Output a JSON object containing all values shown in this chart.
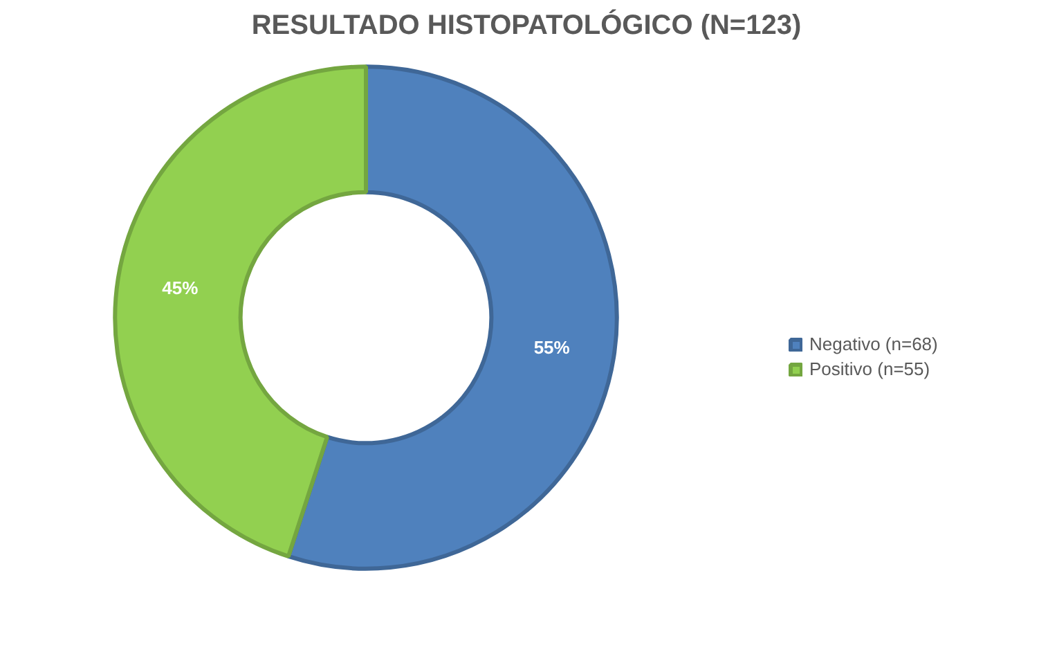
{
  "chart_data": {
    "type": "donut",
    "title": "RESULTADO HISTOPATOLÓGICO (N=123)",
    "categories": [
      "Negativo (n=68)",
      "Positivo (n=55)"
    ],
    "values": [
      55,
      45
    ],
    "colors": [
      "#4f81bd",
      "#92d050"
    ],
    "value_labels": [
      "55%",
      "45%"
    ],
    "legend": "right"
  }
}
